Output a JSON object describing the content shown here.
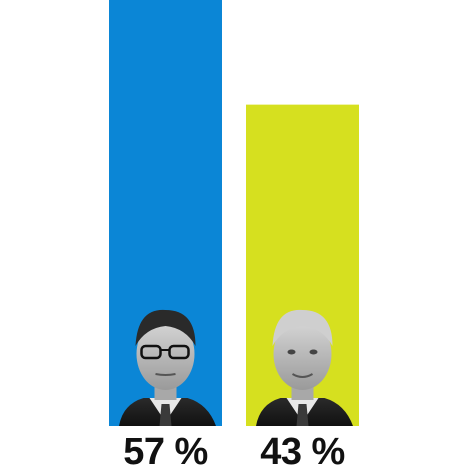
{
  "chart_data": {
    "type": "bar",
    "categories": [
      "",
      ""
    ],
    "values": [
      57,
      43
    ],
    "value_labels": [
      "57 %",
      "43 %"
    ],
    "colors": [
      "#0b86d6",
      "#d6e01f"
    ],
    "ylim": [
      0,
      57
    ],
    "title": "",
    "xlabel": "",
    "ylabel": "",
    "grid": false,
    "legend": "none",
    "icons": [
      "person-portrait-icon",
      "person-portrait-icon"
    ]
  }
}
